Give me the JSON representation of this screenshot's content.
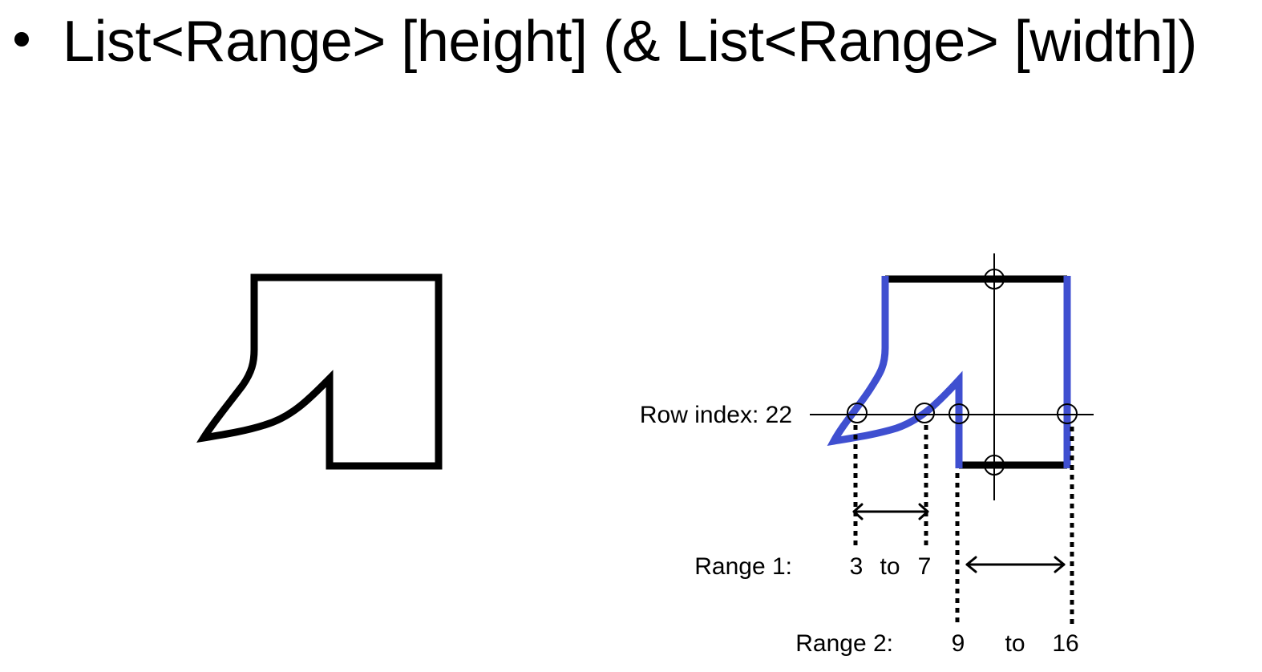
{
  "bullet": {
    "text": "List<Range> [height] (& List<Range> [width])"
  },
  "colors": {
    "outline": "#000000",
    "edge_highlight": "#3f4fd0",
    "background": "#ffffff"
  },
  "annotations": {
    "row_label": "Row index: 22",
    "range1_label": "Range 1:",
    "range1_start": "3",
    "range1_to": "to",
    "range1_end": "7",
    "range2_label": "Range 2:",
    "range2_start": "9",
    "range2_to": "to",
    "range2_end": "16"
  }
}
